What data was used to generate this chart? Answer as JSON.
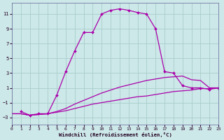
{
  "xlabel": "Windchill (Refroidissement éolien,°C)",
  "background_color": "#cce8e8",
  "grid_color": "#aacccc",
  "line_color": "#aa00aa",
  "xlim": [
    0,
    23
  ],
  "ylim": [
    -4,
    12.5
  ],
  "yticks": [
    -3,
    -1,
    1,
    3,
    5,
    7,
    9,
    11
  ],
  "xticks": [
    0,
    1,
    2,
    3,
    4,
    5,
    6,
    7,
    8,
    9,
    10,
    11,
    12,
    13,
    14,
    15,
    16,
    17,
    18,
    19,
    20,
    21,
    22,
    23
  ],
  "series": [
    {
      "x": [
        0,
        1,
        2,
        3,
        4,
        5,
        6,
        7,
        8,
        9,
        10,
        11,
        12,
        13,
        14,
        15,
        16,
        17,
        18,
        19,
        20,
        21,
        22,
        23
      ],
      "y": [
        -2.5,
        -2.5,
        -2.7,
        -2.6,
        -2.5,
        -2.3,
        -2.1,
        -1.8,
        -1.5,
        -1.2,
        -1.0,
        -0.8,
        -0.6,
        -0.4,
        -0.2,
        -0.1,
        0.1,
        0.3,
        0.5,
        0.6,
        0.7,
        0.9,
        0.9,
        1.0
      ],
      "marker": false,
      "lw": 0.9
    },
    {
      "x": [
        0,
        1,
        2,
        3,
        4,
        5,
        6,
        7,
        8,
        9,
        10,
        11,
        12,
        13,
        14,
        15,
        16,
        17,
        18,
        19,
        20,
        21,
        22,
        23
      ],
      "y": [
        -2.5,
        -2.5,
        -2.7,
        -2.6,
        -2.5,
        -2.2,
        -1.8,
        -1.2,
        -0.7,
        -0.2,
        0.3,
        0.7,
        1.1,
        1.4,
        1.7,
        2.0,
        2.2,
        2.4,
        2.5,
        2.6,
        2.1,
        2.0,
        1.0,
        1.0
      ],
      "marker": false,
      "lw": 0.9
    },
    {
      "x": [
        1,
        2,
        3,
        4,
        5,
        6,
        7,
        8,
        9,
        10,
        11,
        12,
        13,
        14,
        15,
        16,
        17,
        18,
        19,
        20,
        21,
        22,
        23
      ],
      "y": [
        -2.2,
        -2.7,
        -2.5,
        -2.5,
        0.0,
        3.2,
        6.0,
        8.5,
        8.5,
        11.0,
        11.5,
        11.7,
        11.5,
        11.2,
        11.0,
        9.0,
        3.2,
        3.0,
        1.3,
        1.0,
        1.0,
        0.8,
        1.0
      ],
      "marker": true,
      "lw": 0.9
    }
  ]
}
